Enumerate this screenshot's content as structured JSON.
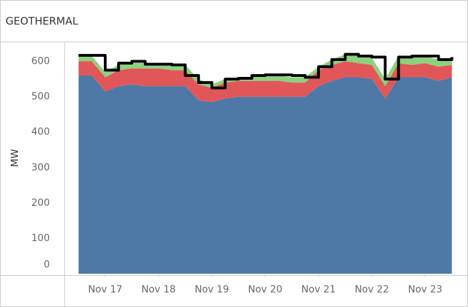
{
  "chart_data": {
    "type": "stacked_area",
    "title": "GEOTHERMAL",
    "y_label": "MW",
    "x": [
      16.5,
      16.75,
      17,
      17.25,
      17.5,
      17.75,
      18,
      18.25,
      18.5,
      18.75,
      19,
      19.25,
      19.5,
      19.75,
      20,
      20.25,
      20.5,
      20.75,
      21,
      21.25,
      21.5,
      21.75,
      22,
      22.25,
      22.5,
      22.75,
      23,
      23.25,
      23.5
    ],
    "series": [
      {
        "color": "#4e79a7",
        "values": [
          560,
          560,
          515,
          530,
          535,
          530,
          530,
          530,
          530,
          490,
          485,
          495,
          500,
          500,
          500,
          500,
          500,
          500,
          530,
          545,
          555,
          555,
          550,
          495,
          555,
          555,
          555,
          545,
          555
        ]
      },
      {
        "color": "#e15759",
        "values": [
          40,
          40,
          40,
          45,
          45,
          50,
          50,
          45,
          45,
          45,
          40,
          45,
          45,
          45,
          45,
          45,
          40,
          40,
          45,
          45,
          45,
          40,
          40,
          35,
          40,
          35,
          40,
          40,
          35
        ]
      },
      {
        "color": "#8cd17d",
        "values": [
          15,
          15,
          15,
          15,
          15,
          15,
          15,
          15,
          15,
          15,
          10,
          10,
          10,
          10,
          15,
          15,
          15,
          15,
          10,
          15,
          20,
          20,
          20,
          20,
          20,
          25,
          20,
          20,
          20
        ]
      }
    ],
    "line": {
      "color": "#000000",
      "values": [
        617,
        617,
        575,
        595,
        600,
        592,
        592,
        590,
        560,
        540,
        525,
        550,
        552,
        560,
        562,
        562,
        560,
        555,
        585,
        605,
        620,
        615,
        612,
        550,
        612,
        615,
        615,
        605,
        612
      ]
    },
    "xlim": [
      16.39,
      23.66
    ],
    "xticks": [
      {
        "value": 17,
        "label": "Nov 17"
      },
      {
        "value": 18,
        "label": "Nov 18"
      },
      {
        "value": 19,
        "label": "Nov 19"
      },
      {
        "value": 20,
        "label": "Nov 20"
      },
      {
        "value": 21,
        "label": "Nov 21"
      },
      {
        "value": 22,
        "label": "Nov 22"
      },
      {
        "value": 23,
        "label": "Nov 23"
      }
    ],
    "ylim": [
      0,
      650
    ],
    "yticks": [
      0,
      100,
      200,
      300,
      400,
      500,
      600
    ]
  }
}
